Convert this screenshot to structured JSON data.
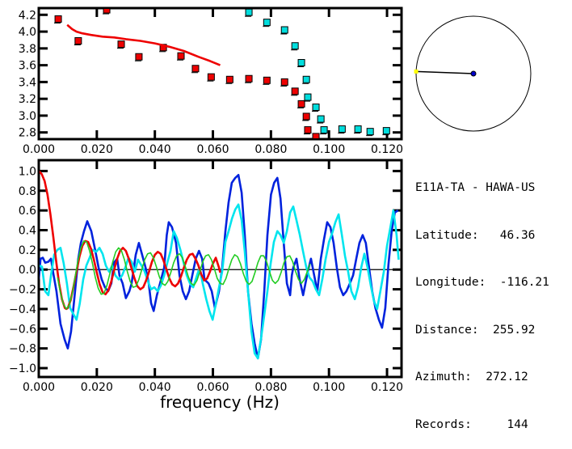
{
  "station_info": {
    "title": "E11A-TA - HAWA-US",
    "rows": [
      {
        "label": "Latitude:",
        "value": "46.36"
      },
      {
        "label": "Longitude:",
        "value": "-116.21"
      },
      {
        "label": "Distance:",
        "value": "255.92"
      },
      {
        "label": "Azimuth:",
        "value": "272.12"
      },
      {
        "label": "Records:",
        "value": "144"
      }
    ]
  },
  "azimuth_map": {
    "azimuth_deg": 272.12,
    "station_color": "#ffff00",
    "center_color": "#0000cc"
  },
  "chart_data": [
    {
      "type": "scatter",
      "title": "",
      "xlabel": "",
      "ylabel": "",
      "xlim": [
        0.0,
        0.125
      ],
      "ylim": [
        2.72,
        4.28
      ],
      "xticks": [
        "0.000",
        "0.020",
        "0.040",
        "0.060",
        "0.080",
        "0.100",
        "0.120"
      ],
      "xtick_values": [
        0.0,
        0.02,
        0.04,
        0.06,
        0.08,
        0.1,
        0.12
      ],
      "yticks": [
        "2.8",
        "3.0",
        "3.2",
        "3.4",
        "3.6",
        "3.8",
        "4.0",
        "4.2"
      ],
      "ytick_values": [
        2.8,
        3.0,
        3.2,
        3.4,
        3.6,
        3.8,
        4.0,
        4.2
      ],
      "series": [
        {
          "name": "red-points",
          "color": "#ee0000",
          "kind": "points",
          "x": [
            0.0067,
            0.0136,
            0.0234,
            0.0284,
            0.0345,
            0.0429,
            0.049,
            0.054,
            0.0594,
            0.0658,
            0.0724,
            0.0786,
            0.0847,
            0.0883,
            0.0905,
            0.0922,
            0.0927,
            0.0955
          ],
          "y": [
            4.15,
            3.89,
            4.26,
            3.85,
            3.7,
            3.81,
            3.71,
            3.56,
            3.46,
            3.43,
            3.44,
            3.42,
            3.4,
            3.29,
            3.14,
            2.99,
            2.83,
            2.75
          ]
        },
        {
          "name": "cyan-points",
          "color": "#00dddd",
          "kind": "points",
          "x": [
            0.0724,
            0.0786,
            0.0847,
            0.0883,
            0.0905,
            0.0922,
            0.0927,
            0.0955,
            0.0972,
            0.0983,
            0.1045,
            0.11,
            0.1142,
            0.1198
          ],
          "y": [
            4.23,
            4.11,
            4.02,
            3.83,
            3.63,
            3.43,
            3.22,
            3.1,
            2.96,
            2.83,
            2.84,
            2.84,
            2.81,
            2.82
          ]
        },
        {
          "name": "red-curve",
          "color": "#ee0000",
          "kind": "line",
          "x": [
            0.0098,
            0.0115,
            0.013,
            0.015,
            0.018,
            0.022,
            0.026,
            0.03,
            0.035,
            0.04,
            0.045,
            0.05,
            0.055,
            0.059,
            0.0625
          ],
          "y": [
            4.08,
            4.03,
            4.0,
            3.98,
            3.96,
            3.94,
            3.93,
            3.91,
            3.89,
            3.86,
            3.82,
            3.77,
            3.7,
            3.65,
            3.6
          ]
        }
      ]
    },
    {
      "type": "line",
      "title": "",
      "xlabel": "frequency (Hz)",
      "ylabel": "",
      "xlim": [
        0.0,
        0.125
      ],
      "ylim": [
        -1.09,
        1.11
      ],
      "xticks": [
        "0.000",
        "0.020",
        "0.040",
        "0.060",
        "0.080",
        "0.100",
        "0.120"
      ],
      "xtick_values": [
        0.0,
        0.02,
        0.04,
        0.06,
        0.08,
        0.1,
        0.12
      ],
      "yticks": [
        "-1.0",
        "-0.8",
        "-0.6",
        "-0.4",
        "-0.2",
        "0.0",
        "0.2",
        "0.4",
        "0.6",
        "0.8",
        "1.0"
      ],
      "ytick_values": [
        -1.0,
        -0.8,
        -0.6,
        -0.4,
        -0.2,
        0.0,
        0.2,
        0.4,
        0.6,
        0.8,
        1.0
      ],
      "zero_line": true,
      "series": [
        {
          "name": "blue",
          "color": "#0022dd",
          "x": [
            0.0,
            0.0006,
            0.0014,
            0.0022,
            0.0033,
            0.0042,
            0.005,
            0.0061,
            0.0075,
            0.0089,
            0.01,
            0.0111,
            0.0125,
            0.0136,
            0.0145,
            0.0156,
            0.0167,
            0.0181,
            0.0195,
            0.0206,
            0.0217,
            0.0228,
            0.0239,
            0.025,
            0.0259,
            0.027,
            0.0278,
            0.0289,
            0.03,
            0.0312,
            0.032,
            0.0334,
            0.0345,
            0.0356,
            0.0368,
            0.0379,
            0.0387,
            0.0396,
            0.0407,
            0.0418,
            0.0432,
            0.0441,
            0.0448,
            0.0459,
            0.0473,
            0.0485,
            0.0496,
            0.0507,
            0.0518,
            0.0529,
            0.0541,
            0.0552,
            0.0563,
            0.0571,
            0.0585,
            0.0596,
            0.0607,
            0.0621,
            0.0632,
            0.0643,
            0.0654,
            0.0665,
            0.0677,
            0.0688,
            0.0699,
            0.071,
            0.0721,
            0.0733,
            0.0744,
            0.0755,
            0.0766,
            0.0777,
            0.0788,
            0.08,
            0.0811,
            0.0822,
            0.0833,
            0.0844,
            0.0855,
            0.0866,
            0.0872,
            0.0877,
            0.0888,
            0.0899,
            0.0911,
            0.0919,
            0.0927,
            0.0938,
            0.0949,
            0.096,
            0.0972,
            0.0983,
            0.0994,
            0.1005,
            0.1016,
            0.1027,
            0.1038,
            0.1049,
            0.106,
            0.1072,
            0.1083,
            0.1094,
            0.1105,
            0.1116,
            0.1127,
            0.1138,
            0.1149,
            0.116,
            0.1172,
            0.1183,
            0.1194,
            0.1205,
            0.1216,
            0.1227,
            0.1238
          ],
          "y": [
            -0.1,
            0.11,
            0.12,
            0.07,
            0.08,
            0.11,
            -0.04,
            -0.22,
            -0.55,
            -0.71,
            -0.8,
            -0.63,
            -0.22,
            0.11,
            0.27,
            0.39,
            0.49,
            0.39,
            0.19,
            0.02,
            -0.1,
            -0.18,
            -0.22,
            -0.14,
            0.07,
            0.11,
            -0.06,
            -0.14,
            -0.29,
            -0.22,
            -0.14,
            0.15,
            0.27,
            0.15,
            0.02,
            -0.14,
            -0.34,
            -0.42,
            -0.26,
            -0.14,
            0.02,
            0.35,
            0.48,
            0.43,
            0.27,
            -0.06,
            -0.22,
            -0.3,
            -0.22,
            -0.06,
            0.11,
            0.19,
            0.11,
            -0.1,
            -0.14,
            -0.22,
            -0.39,
            -0.22,
            0.02,
            0.39,
            0.68,
            0.88,
            0.93,
            0.96,
            0.78,
            0.35,
            -0.22,
            -0.55,
            -0.75,
            -0.9,
            -0.71,
            -0.22,
            0.35,
            0.76,
            0.88,
            0.93,
            0.72,
            0.27,
            -0.14,
            -0.26,
            -0.06,
            0.02,
            0.11,
            -0.1,
            -0.26,
            -0.14,
            -0.02,
            0.11,
            -0.06,
            -0.22,
            0.11,
            0.31,
            0.48,
            0.43,
            0.27,
            0.02,
            -0.18,
            -0.26,
            -0.22,
            -0.14,
            -0.06,
            0.11,
            0.27,
            0.35,
            0.27,
            0.02,
            -0.22,
            -0.39,
            -0.51,
            -0.59,
            -0.39,
            0.05,
            0.39,
            0.58,
            0.6
          ]
        },
        {
          "name": "cyan",
          "color": "#00e5ee",
          "x": [
            0.0,
            0.0011,
            0.0022,
            0.0033,
            0.0042,
            0.0053,
            0.0064,
            0.0075,
            0.0086,
            0.0097,
            0.0108,
            0.0119,
            0.013,
            0.0141,
            0.0153,
            0.0164,
            0.0175,
            0.0186,
            0.0198,
            0.0209,
            0.022,
            0.0231,
            0.0242,
            0.0253,
            0.0264,
            0.0276,
            0.0287,
            0.0298,
            0.0309,
            0.032,
            0.0331,
            0.0342,
            0.0354,
            0.0365,
            0.0376,
            0.0387,
            0.0398,
            0.041,
            0.0421,
            0.0432,
            0.0443,
            0.0454,
            0.0465,
            0.0476,
            0.0488,
            0.0499,
            0.051,
            0.0521,
            0.0532,
            0.0543,
            0.0554,
            0.0565,
            0.0577,
            0.0588,
            0.0599,
            0.061,
            0.0621,
            0.0632,
            0.0643,
            0.0655,
            0.0666,
            0.0677,
            0.0688,
            0.0699,
            0.071,
            0.0721,
            0.0733,
            0.0744,
            0.0755,
            0.0766,
            0.0777,
            0.0788,
            0.0799,
            0.081,
            0.0822,
            0.0833,
            0.0844,
            0.0855,
            0.0866,
            0.0877,
            0.0888,
            0.0899,
            0.0911,
            0.0922,
            0.0933,
            0.0944,
            0.0955,
            0.0966,
            0.0977,
            0.0988,
            0.1,
            0.1011,
            0.1022,
            0.1033,
            0.1044,
            0.1055,
            0.1066,
            0.1077,
            0.1089,
            0.11,
            0.1111,
            0.1122,
            0.1133,
            0.1144,
            0.1155,
            0.1166,
            0.1177,
            0.1189,
            0.12,
            0.1211,
            0.1222,
            0.1233,
            0.124
          ],
          "y": [
            0.04,
            0.03,
            -0.22,
            -0.26,
            -0.06,
            0.15,
            0.2,
            0.22,
            0.06,
            -0.14,
            -0.39,
            -0.45,
            -0.51,
            -0.35,
            -0.1,
            0.04,
            0.12,
            0.2,
            0.18,
            0.22,
            0.16,
            0.04,
            -0.02,
            0.04,
            -0.06,
            -0.1,
            -0.06,
            0.02,
            0.12,
            0.08,
            -0.02,
            0.1,
            0.04,
            -0.02,
            -0.12,
            -0.2,
            -0.18,
            -0.22,
            -0.16,
            -0.06,
            0.07,
            0.19,
            0.39,
            0.32,
            0.2,
            0.07,
            -0.06,
            -0.14,
            -0.18,
            -0.08,
            0.02,
            -0.14,
            -0.3,
            -0.42,
            -0.51,
            -0.35,
            -0.18,
            -0.02,
            0.28,
            0.4,
            0.52,
            0.61,
            0.66,
            0.5,
            0.18,
            -0.22,
            -0.63,
            -0.85,
            -0.9,
            -0.7,
            -0.46,
            -0.22,
            0.06,
            0.28,
            0.39,
            0.35,
            0.27,
            0.39,
            0.58,
            0.64,
            0.5,
            0.36,
            0.18,
            0.02,
            -0.08,
            -0.12,
            -0.2,
            -0.26,
            -0.1,
            0.1,
            0.28,
            0.37,
            0.48,
            0.56,
            0.36,
            0.14,
            -0.02,
            -0.22,
            -0.3,
            -0.18,
            0.02,
            0.16,
            0.02,
            -0.16,
            -0.32,
            -0.4,
            -0.22,
            -0.02,
            0.24,
            0.42,
            0.6,
            0.35,
            0.1
          ]
        },
        {
          "name": "red",
          "color": "#ee0000",
          "x": [
            0.0,
            0.001,
            0.002,
            0.003,
            0.004,
            0.005,
            0.006,
            0.007,
            0.008,
            0.009,
            0.0095,
            0.01,
            0.011,
            0.012,
            0.013,
            0.014,
            0.015,
            0.016,
            0.017,
            0.018,
            0.019,
            0.02,
            0.021,
            0.022,
            0.023,
            0.024,
            0.025,
            0.026,
            0.027,
            0.028,
            0.029,
            0.03,
            0.031,
            0.032,
            0.033,
            0.034,
            0.035,
            0.036,
            0.037,
            0.038,
            0.039,
            0.04,
            0.041,
            0.042,
            0.043,
            0.044,
            0.045,
            0.046,
            0.047,
            0.048,
            0.049,
            0.05,
            0.051,
            0.052,
            0.053,
            0.054,
            0.055,
            0.056,
            0.057,
            0.058,
            0.059,
            0.06,
            0.061,
            0.062,
            0.0625
          ],
          "y": [
            1.0,
            0.97,
            0.9,
            0.76,
            0.56,
            0.33,
            0.08,
            -0.14,
            -0.3,
            -0.39,
            -0.4,
            -0.39,
            -0.31,
            -0.17,
            -0.02,
            0.13,
            0.24,
            0.29,
            0.28,
            0.21,
            0.1,
            -0.03,
            -0.15,
            -0.23,
            -0.25,
            -0.21,
            -0.12,
            0.0,
            0.11,
            0.19,
            0.22,
            0.19,
            0.11,
            0.01,
            -0.09,
            -0.17,
            -0.2,
            -0.18,
            -0.11,
            -0.02,
            0.08,
            0.15,
            0.18,
            0.16,
            0.09,
            0.0,
            -0.09,
            -0.15,
            -0.17,
            -0.14,
            -0.07,
            0.02,
            0.1,
            0.15,
            0.16,
            0.11,
            0.04,
            -0.05,
            -0.11,
            -0.09,
            -0.02,
            0.06,
            0.12,
            0.03,
            -0.03
          ]
        },
        {
          "name": "green",
          "color": "#22cc22",
          "x": [
            0.0065,
            0.0075,
            0.0085,
            0.0095,
            0.0105,
            0.0115,
            0.0125,
            0.0135,
            0.0145,
            0.0155,
            0.0165,
            0.0175,
            0.0185,
            0.0195,
            0.0205,
            0.0215,
            0.0225,
            0.0235,
            0.0245,
            0.0255,
            0.0265,
            0.0275,
            0.0285,
            0.0295,
            0.0305,
            0.0315,
            0.0325,
            0.0335,
            0.0345,
            0.0355,
            0.0365,
            0.0375,
            0.0385,
            0.0395,
            0.0405,
            0.0415,
            0.0425,
            0.0435,
            0.0445,
            0.0455,
            0.0465,
            0.0475,
            0.0485,
            0.0495,
            0.0505,
            0.0515,
            0.0525,
            0.0535,
            0.0545,
            0.0555,
            0.0565,
            0.0575,
            0.0585,
            0.0595,
            0.0605,
            0.0615,
            0.0625,
            0.0635,
            0.0645,
            0.0655,
            0.0665,
            0.0675,
            0.0685,
            0.0695,
            0.0705,
            0.0715,
            0.0725,
            0.0735,
            0.0745,
            0.0755,
            0.0765,
            0.0775,
            0.0785,
            0.0795,
            0.0805,
            0.0815,
            0.0825,
            0.0835,
            0.0845,
            0.0855,
            0.0865,
            0.0875,
            0.0885,
            0.0895,
            0.0905,
            0.0915,
            0.0925,
            0.0935
          ],
          "y": [
            -0.08,
            -0.24,
            -0.35,
            -0.4,
            -0.36,
            -0.25,
            -0.08,
            0.09,
            0.22,
            0.29,
            0.28,
            0.19,
            0.06,
            -0.08,
            -0.19,
            -0.25,
            -0.24,
            -0.16,
            -0.04,
            0.08,
            0.18,
            0.22,
            0.19,
            0.1,
            -0.02,
            -0.12,
            -0.18,
            -0.17,
            -0.1,
            0.0,
            0.1,
            0.16,
            0.17,
            0.12,
            0.03,
            -0.07,
            -0.14,
            -0.16,
            -0.12,
            -0.03,
            0.07,
            0.14,
            0.16,
            0.12,
            0.03,
            -0.07,
            -0.14,
            -0.16,
            -0.11,
            -0.02,
            0.08,
            0.14,
            0.15,
            0.1,
            0.01,
            -0.09,
            -0.14,
            -0.15,
            -0.09,
            0.01,
            0.1,
            0.15,
            0.13,
            0.06,
            -0.04,
            -0.12,
            -0.15,
            -0.12,
            -0.03,
            0.07,
            0.14,
            0.14,
            0.08,
            -0.02,
            -0.11,
            -0.14,
            -0.11,
            -0.03,
            0.07,
            0.13,
            0.14,
            0.08,
            -0.02,
            -0.1,
            -0.14,
            -0.1,
            -0.02,
            0.06
          ]
        }
      ]
    }
  ]
}
